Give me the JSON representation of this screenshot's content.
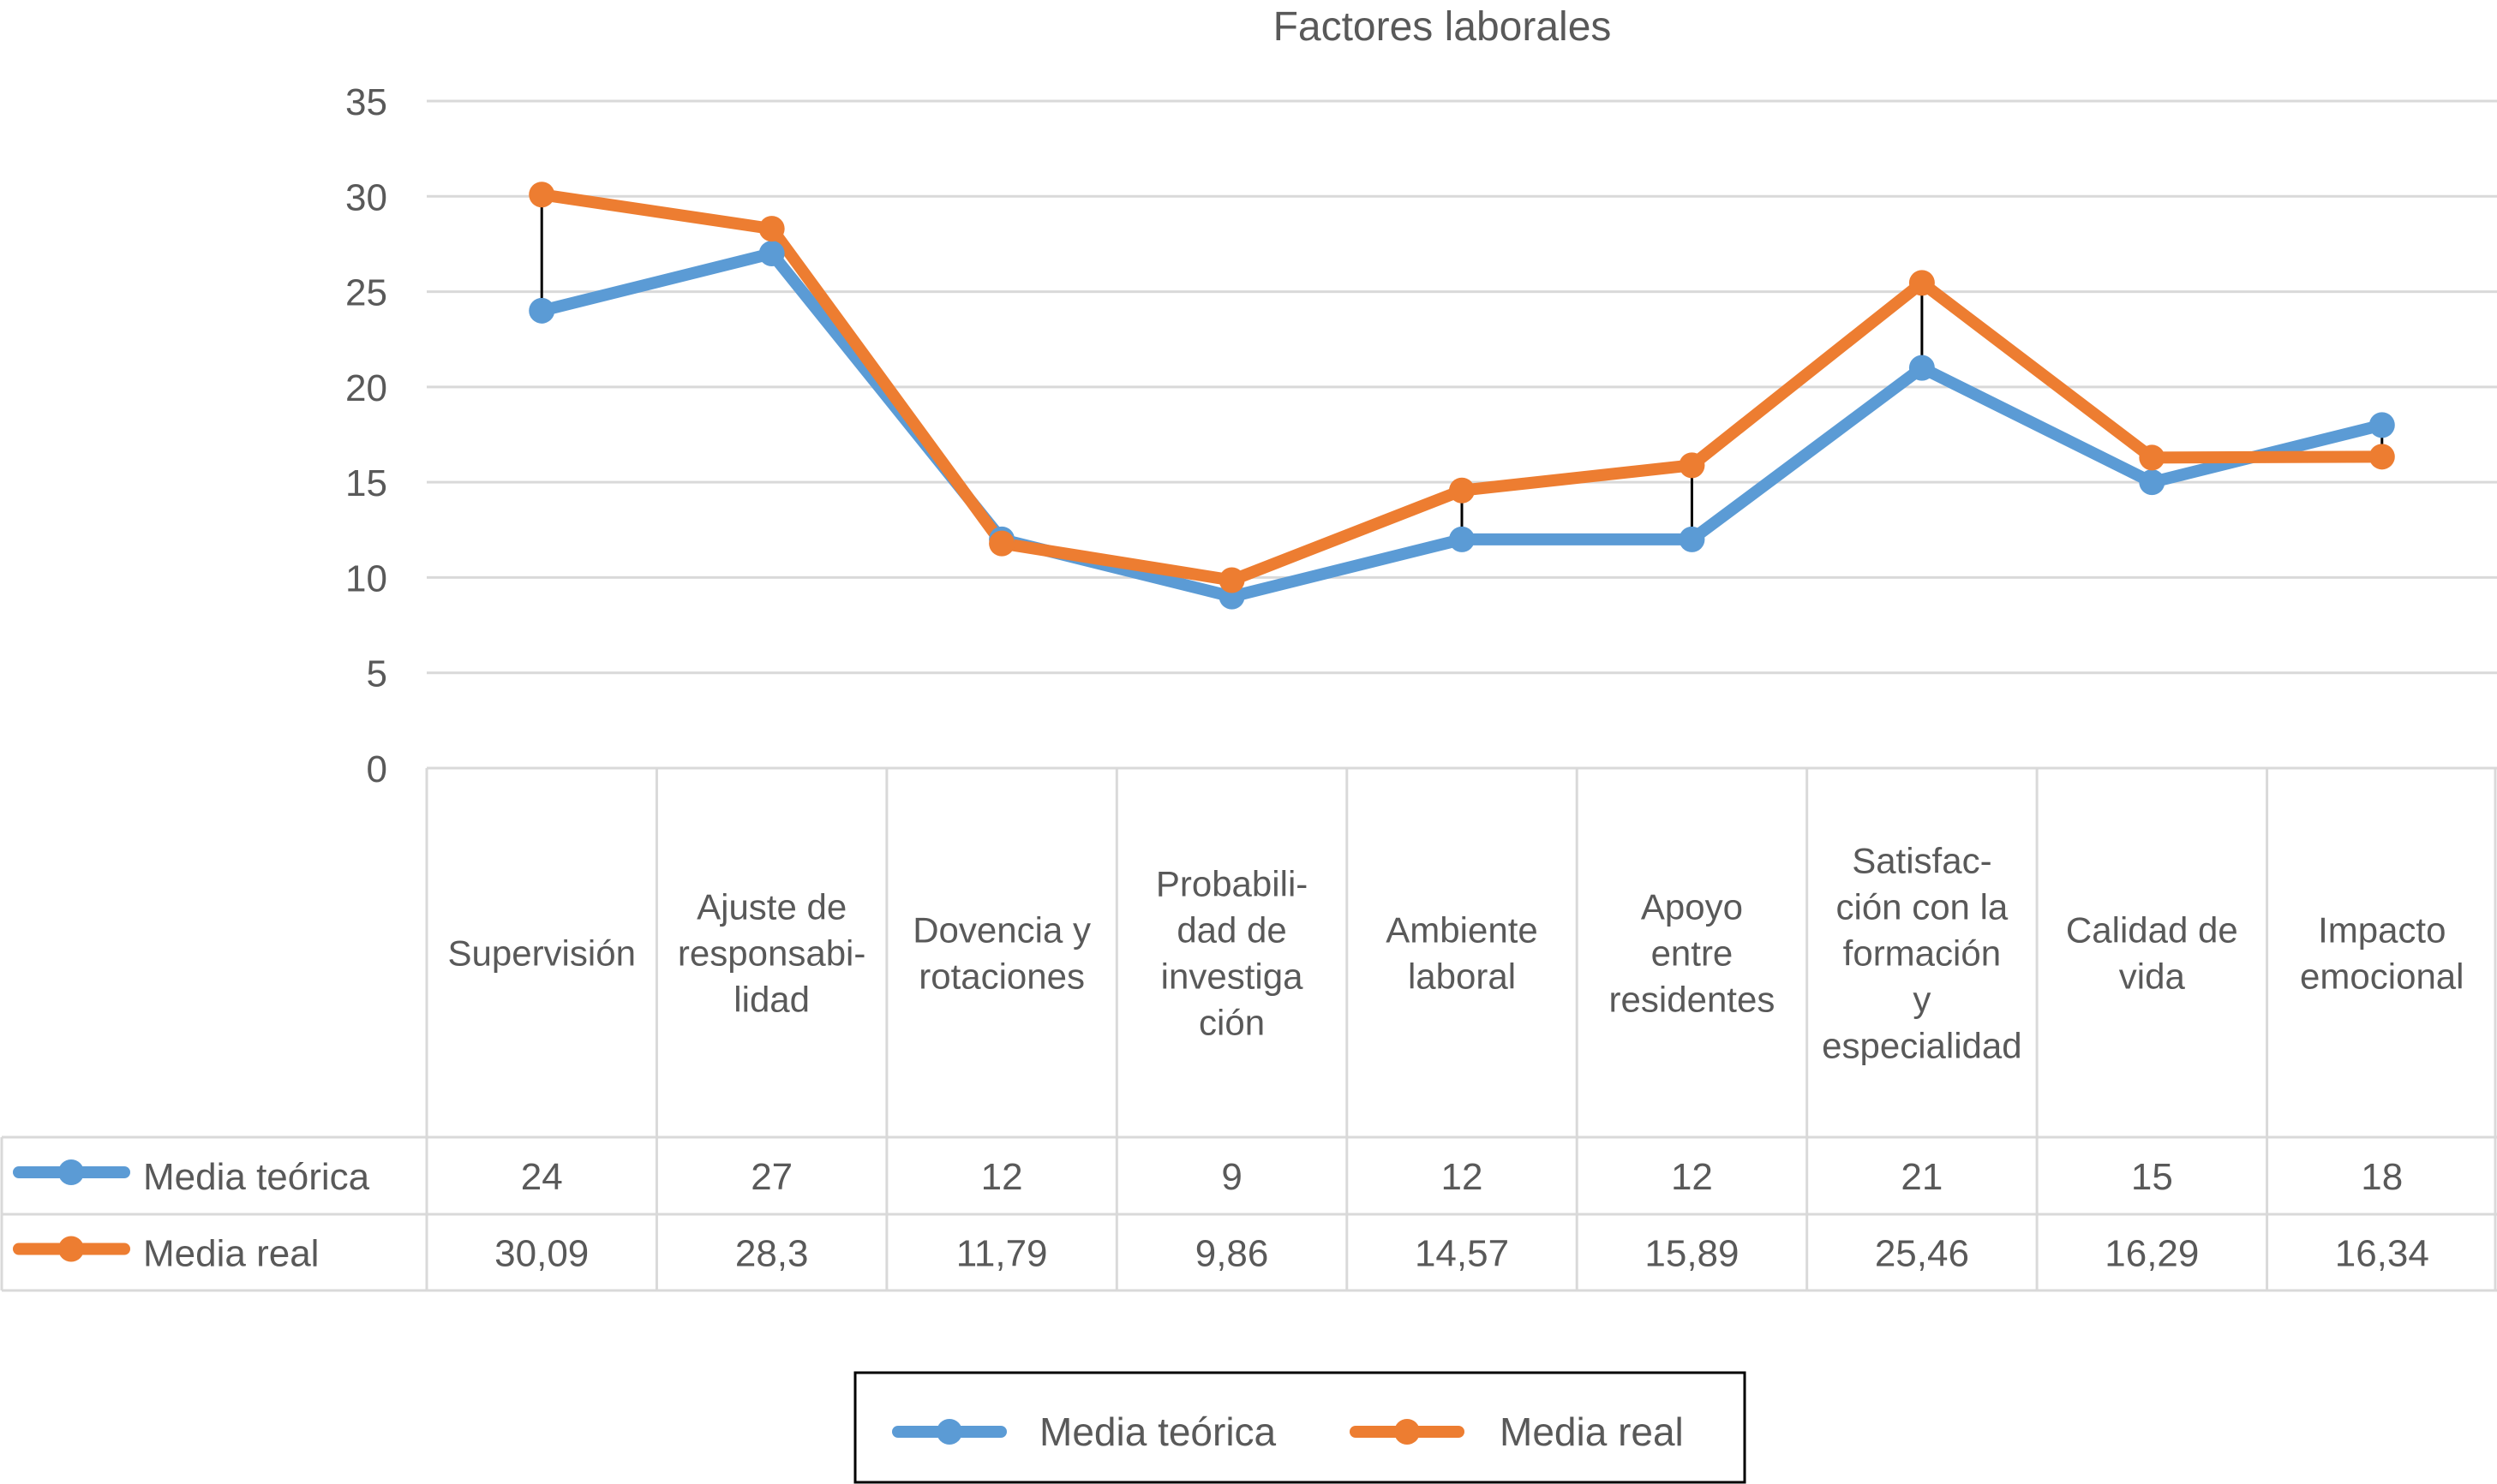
{
  "chart_data": {
    "type": "line",
    "title": "Factores laborales",
    "xlabel": "",
    "ylabel": "",
    "ylim": [
      0,
      35
    ],
    "yticks": [
      "0",
      "5",
      "10",
      "15",
      "20",
      "25",
      "30",
      "35"
    ],
    "grid": true,
    "legend_position": "bottom",
    "data_table": true,
    "high_low_lines": true,
    "categories": [
      [
        "Supervisión"
      ],
      [
        "Ajuste de",
        "responsabi-",
        "lidad"
      ],
      [
        "Dovencia y",
        "rotaciones"
      ],
      [
        "Probabili-",
        "dad de",
        "investiga",
        "ción"
      ],
      [
        "Ambiente",
        "laboral"
      ],
      [
        "Apoyo",
        "entre",
        "residentes"
      ],
      [
        "Satisfac-",
        "ción con la",
        "formación",
        "y",
        "especialidad"
      ],
      [
        "Calidad de",
        "vida"
      ],
      [
        "Impacto",
        "emocional"
      ]
    ],
    "series": [
      {
        "name": "Media teórica",
        "color": "#5b9bd5",
        "values": [
          24,
          27,
          12,
          9,
          12,
          12,
          21,
          15,
          18
        ],
        "labels": [
          "24",
          "27",
          "12",
          "9",
          "12",
          "12",
          "21",
          "15",
          "18"
        ]
      },
      {
        "name": "Media real",
        "color": "#ed7d31",
        "values": [
          30.09,
          28.3,
          11.79,
          9.86,
          14.57,
          15.89,
          25.46,
          16.29,
          16.34
        ],
        "labels": [
          "30,09",
          "28,3",
          "11,79",
          "9,86",
          "14,57",
          "15,89",
          "25,46",
          "16,29",
          "16,34"
        ]
      }
    ]
  }
}
